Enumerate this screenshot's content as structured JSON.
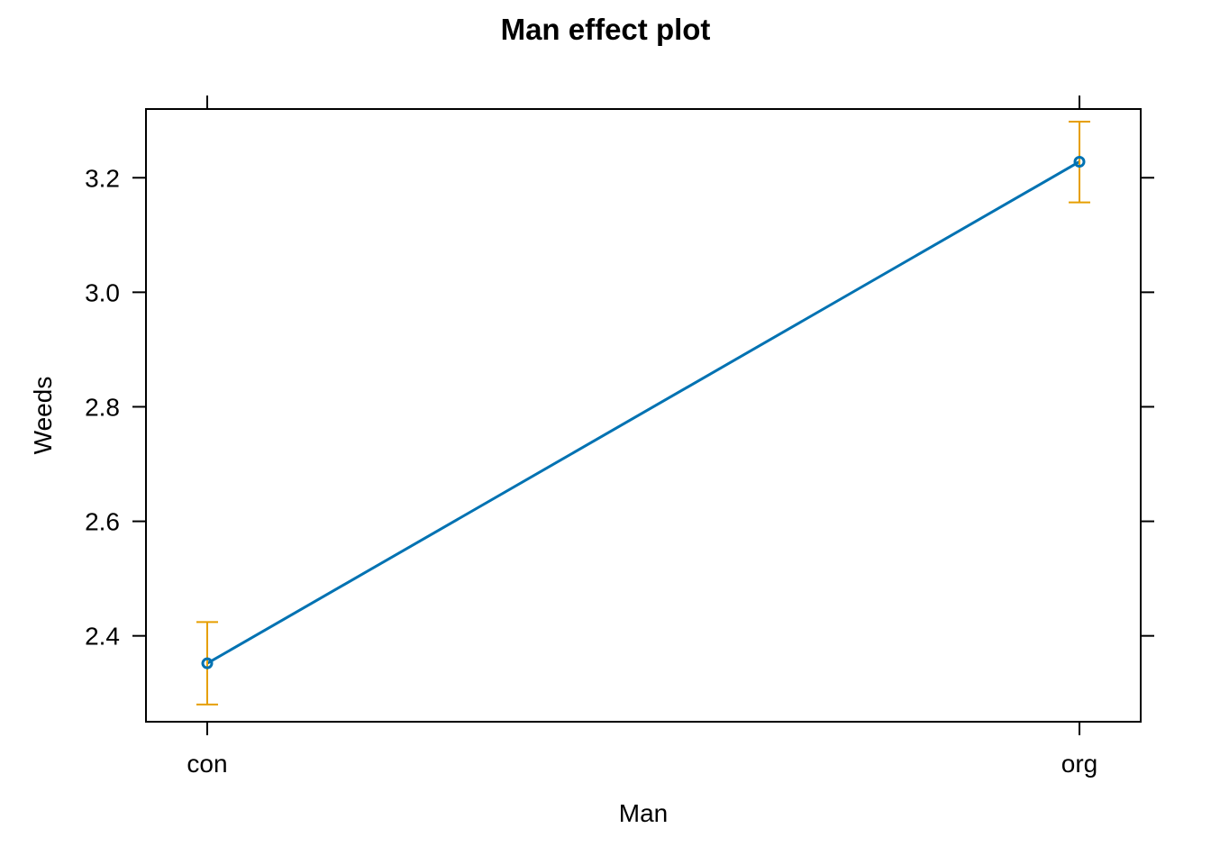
{
  "chart_data": {
    "type": "line",
    "title": "Man effect plot",
    "xlabel": "Man",
    "ylabel": "Weeds",
    "categories": [
      "con",
      "org"
    ],
    "series": [
      {
        "values": [
          2.352,
          3.228
        ],
        "lower": [
          2.28,
          3.157
        ],
        "upper": [
          2.424,
          3.298
        ]
      }
    ],
    "ylim": [
      2.25,
      3.32
    ],
    "yticks": [
      2.4,
      2.6,
      2.8,
      3.0,
      3.2
    ],
    "ytick_labels": [
      "2.4",
      "2.6",
      "2.8",
      "3.0",
      "3.2"
    ],
    "grid": false,
    "legend": "none",
    "colors": {
      "line": "#0072B2",
      "error_bar": "#E69F00",
      "axis": "#000000"
    }
  }
}
